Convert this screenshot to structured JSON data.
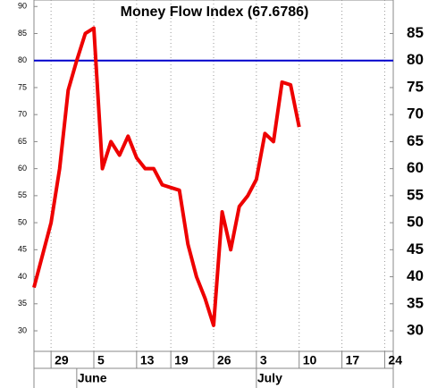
{
  "chart_data": {
    "type": "line",
    "title": "Money Flow Index (67.6786)",
    "x": [
      0,
      1,
      2,
      3,
      4,
      5,
      6,
      7,
      8,
      9,
      10,
      11,
      12,
      13,
      14,
      15,
      16,
      17,
      18,
      19,
      20,
      21,
      22,
      23,
      24,
      25,
      26,
      27,
      28,
      29,
      30,
      31
    ],
    "series": [
      {
        "name": "Money Flow Index",
        "color": "#ee0000",
        "values": [
          38,
          44,
          50,
          60,
          74.5,
          80,
          85,
          86,
          60,
          65,
          62.5,
          66,
          62,
          60,
          60,
          57,
          56.5,
          56,
          46,
          40,
          36,
          31,
          52,
          45,
          53,
          55,
          58,
          66.5,
          65,
          76,
          75.5,
          67.7
        ]
      }
    ],
    "xlim": [
      0,
      42
    ],
    "xticks": [
      {
        "value": 2,
        "label": "29"
      },
      {
        "value": 7,
        "label": "5"
      },
      {
        "value": 12,
        "label": "13"
      },
      {
        "value": 16,
        "label": "19"
      },
      {
        "value": 21,
        "label": "26"
      },
      {
        "value": 26,
        "label": "3"
      },
      {
        "value": 31,
        "label": "10"
      },
      {
        "value": 36,
        "label": "17"
      },
      {
        "value": 41,
        "label": "24"
      }
    ],
    "months": [
      {
        "value": 5,
        "label": "June"
      },
      {
        "value": 26,
        "label": "July"
      }
    ],
    "ylim": [
      26.2,
      91.2
    ],
    "yticks": [
      30,
      35,
      40,
      45,
      50,
      55,
      60,
      65,
      70,
      75,
      80,
      85,
      90
    ],
    "y2lim": [
      26.2,
      91.2
    ],
    "y2ticks": [
      30,
      35,
      40,
      45,
      50,
      55,
      60,
      65,
      70,
      75,
      80,
      85
    ],
    "hline": {
      "value": 80,
      "color": "#0000cc"
    },
    "grid": true
  }
}
